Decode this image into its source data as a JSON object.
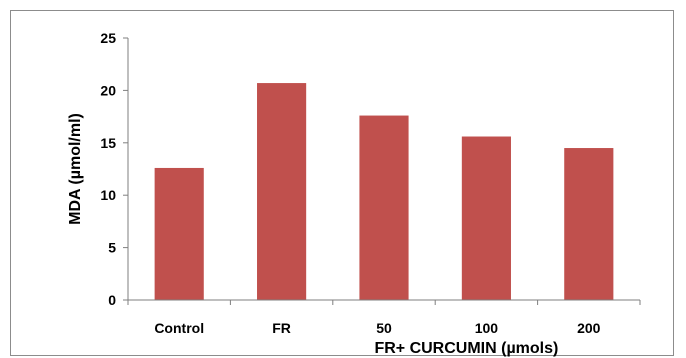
{
  "chart_data": {
    "type": "bar",
    "categories": [
      "Control",
      "FR",
      "50",
      "100",
      "200"
    ],
    "values": [
      12.6,
      20.7,
      17.6,
      15.6,
      14.5
    ],
    "title": "",
    "xlabel": "FR+ CURCUMIN (µmols)",
    "ylabel": "MDA (µmol/ml)",
    "ylim": [
      0,
      25
    ],
    "yticks": [
      "0",
      "5",
      "10",
      "15",
      "20",
      "25"
    ],
    "grid": false,
    "legend": "none",
    "bar_color": "#c0504d"
  }
}
